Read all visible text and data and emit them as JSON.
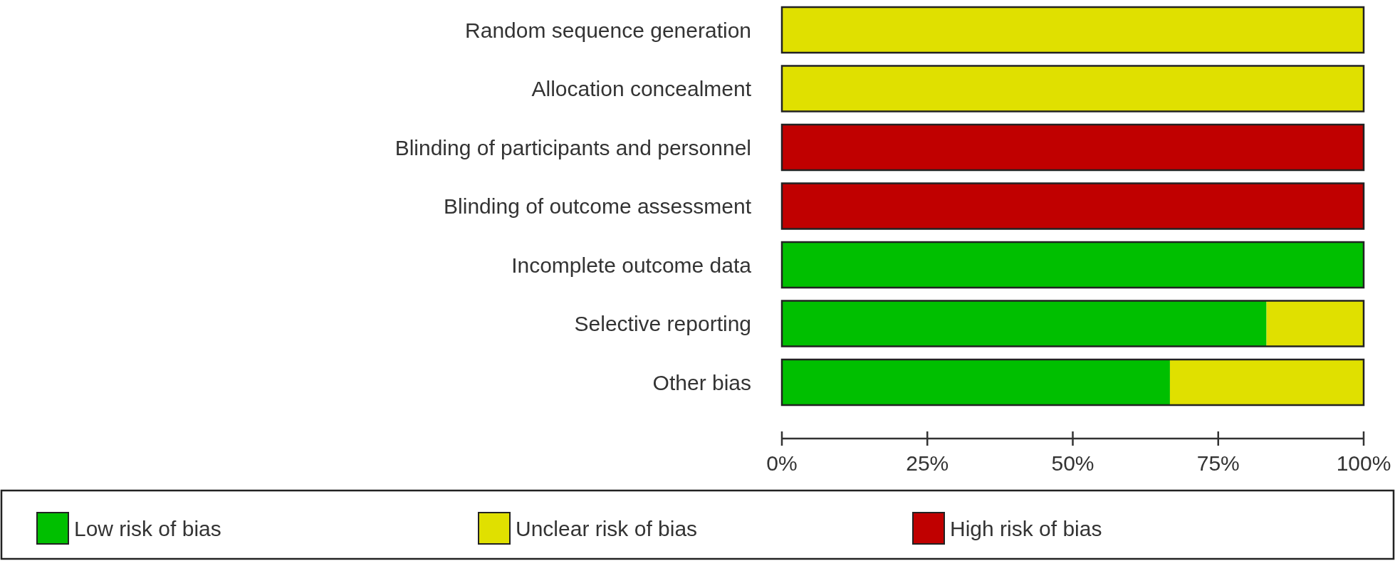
{
  "chart_data": {
    "type": "bar",
    "orientation": "horizontal",
    "stacked": true,
    "categories": [
      "Random sequence generation",
      "Allocation concealment",
      "Blinding of participants and personnel",
      "Blinding of outcome assessment",
      "Incomplete outcome data",
      "Selective reporting",
      "Other bias"
    ],
    "series": [
      {
        "name": "Low risk of bias",
        "color": "#00bf00",
        "values": [
          0,
          0,
          0,
          0,
          100,
          83.3,
          66.7
        ]
      },
      {
        "name": "Unclear risk of bias",
        "color": "#e0e000",
        "values": [
          100,
          100,
          0,
          0,
          0,
          16.7,
          33.3
        ]
      },
      {
        "name": "High risk of bias",
        "color": "#c00000",
        "values": [
          0,
          0,
          100,
          100,
          0,
          0,
          0
        ]
      }
    ],
    "xlim": [
      0,
      100
    ],
    "xticks": [
      {
        "value": 0,
        "label": "0%"
      },
      {
        "value": 25,
        "label": "25%"
      },
      {
        "value": 50,
        "label": "50%"
      },
      {
        "value": 75,
        "label": "75%"
      },
      {
        "value": 100,
        "label": "100%"
      }
    ],
    "grid": false,
    "legend": "bottom"
  }
}
